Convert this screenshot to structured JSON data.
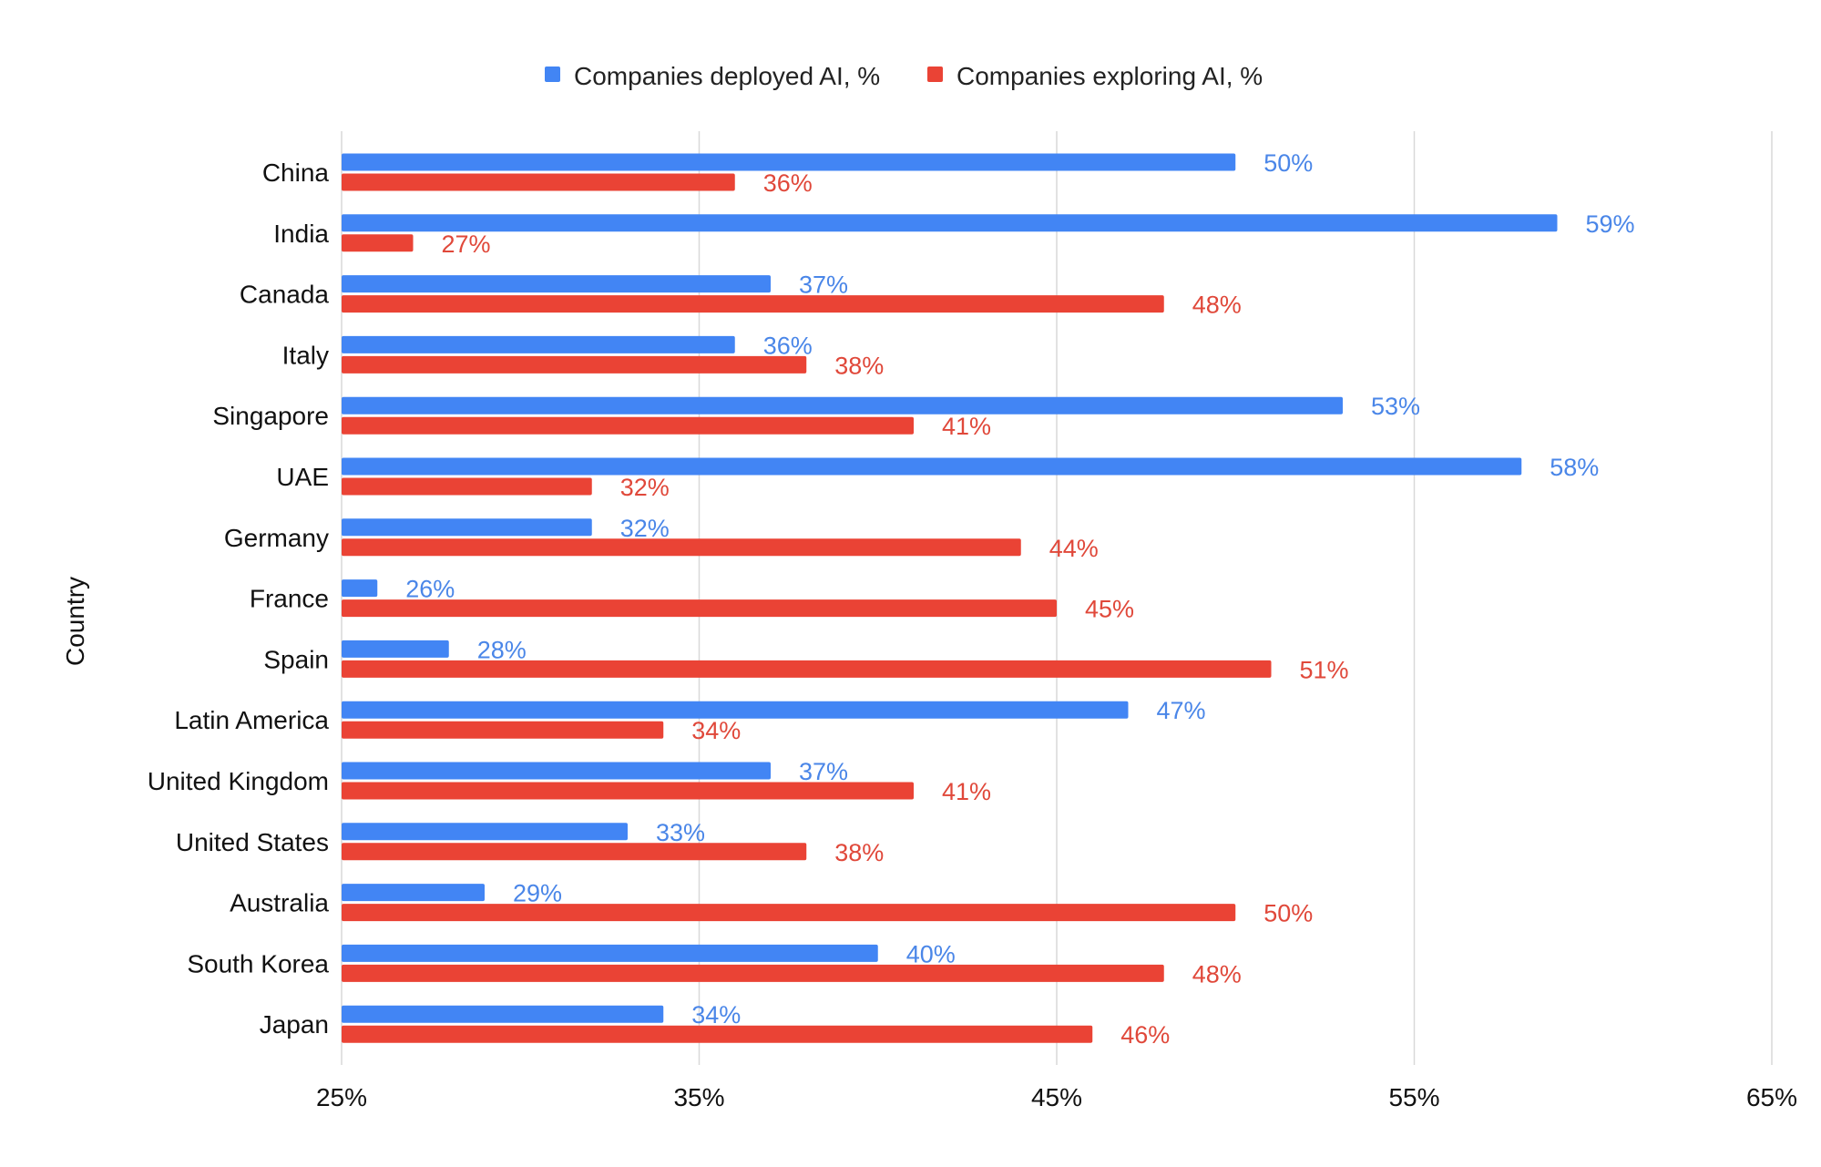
{
  "chart_data": {
    "type": "bar",
    "orientation": "horizontal",
    "title": "",
    "xlabel": "",
    "ylabel": "Country",
    "xlim": [
      25,
      65
    ],
    "xticks": [
      25,
      35,
      45,
      55,
      65
    ],
    "xtick_labels": [
      "25%",
      "35%",
      "45%",
      "55%",
      "65%"
    ],
    "grid": true,
    "legend_position": "top",
    "categories": [
      "China",
      "India",
      "Canada",
      "Italy",
      "Singapore",
      "UAE",
      "Germany",
      "France",
      "Spain",
      "Latin America",
      "United Kingdom",
      "United States",
      "Australia",
      "South Korea",
      "Japan"
    ],
    "series": [
      {
        "name": "Companies deployed AI, %",
        "color": "#4285F4",
        "label_color": "#4A86E8",
        "values": [
          50,
          59,
          37,
          36,
          53,
          58,
          32,
          26,
          28,
          47,
          37,
          33,
          29,
          40,
          34
        ],
        "labels": [
          "50%",
          "59%",
          "37%",
          "36%",
          "53%",
          "58%",
          "32%",
          "26%",
          "28%",
          "47%",
          "37%",
          "33%",
          "29%",
          "40%",
          "34%"
        ]
      },
      {
        "name": "Companies exploring AI, %",
        "color": "#EA4335",
        "label_color": "#E0483A",
        "values": [
          36,
          27,
          48,
          38,
          41,
          32,
          44,
          45,
          51,
          34,
          41,
          38,
          50,
          48,
          46
        ],
        "labels": [
          "36%",
          "27%",
          "48%",
          "38%",
          "41%",
          "32%",
          "44%",
          "45%",
          "51%",
          "34%",
          "41%",
          "38%",
          "50%",
          "48%",
          "46%"
        ]
      }
    ]
  }
}
